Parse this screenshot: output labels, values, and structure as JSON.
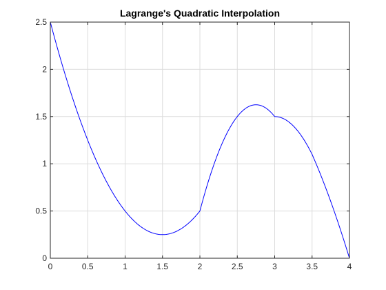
{
  "chart_data": {
    "type": "line",
    "title": "Lagrange's Quadratic Interpolation",
    "xlabel": "",
    "ylabel": "",
    "xlim": [
      0,
      4
    ],
    "ylim": [
      0,
      2.5
    ],
    "xticks": [
      0,
      0.5,
      1,
      1.5,
      2,
      2.5,
      3,
      3.5,
      4
    ],
    "xtick_labels": [
      "0",
      "0.5",
      "1",
      "1.5",
      "2",
      "2.5",
      "3",
      "3.5",
      "4"
    ],
    "yticks": [
      0,
      0.5,
      1,
      1.5,
      2,
      2.5
    ],
    "ytick_labels": [
      "0",
      "0.5",
      "1",
      "1.5",
      "2",
      "2.5"
    ],
    "grid": true,
    "box": true,
    "series": [
      {
        "color": "#0000ff",
        "x": [
          0,
          0.25,
          0.5,
          0.75,
          1,
          1.25,
          1.5,
          1.75,
          2,
          2.25,
          2.5,
          2.75,
          3,
          3.25,
          3.5,
          3.75,
          4
        ],
        "y": [
          2.5,
          1.8125,
          1.25,
          0.8125,
          0.5,
          0.3125,
          0.25,
          0.3125,
          0.5,
          1.125,
          1.5,
          1.625,
          1.5,
          1.4,
          1.1,
          0.6,
          0
        ]
      }
    ]
  }
}
